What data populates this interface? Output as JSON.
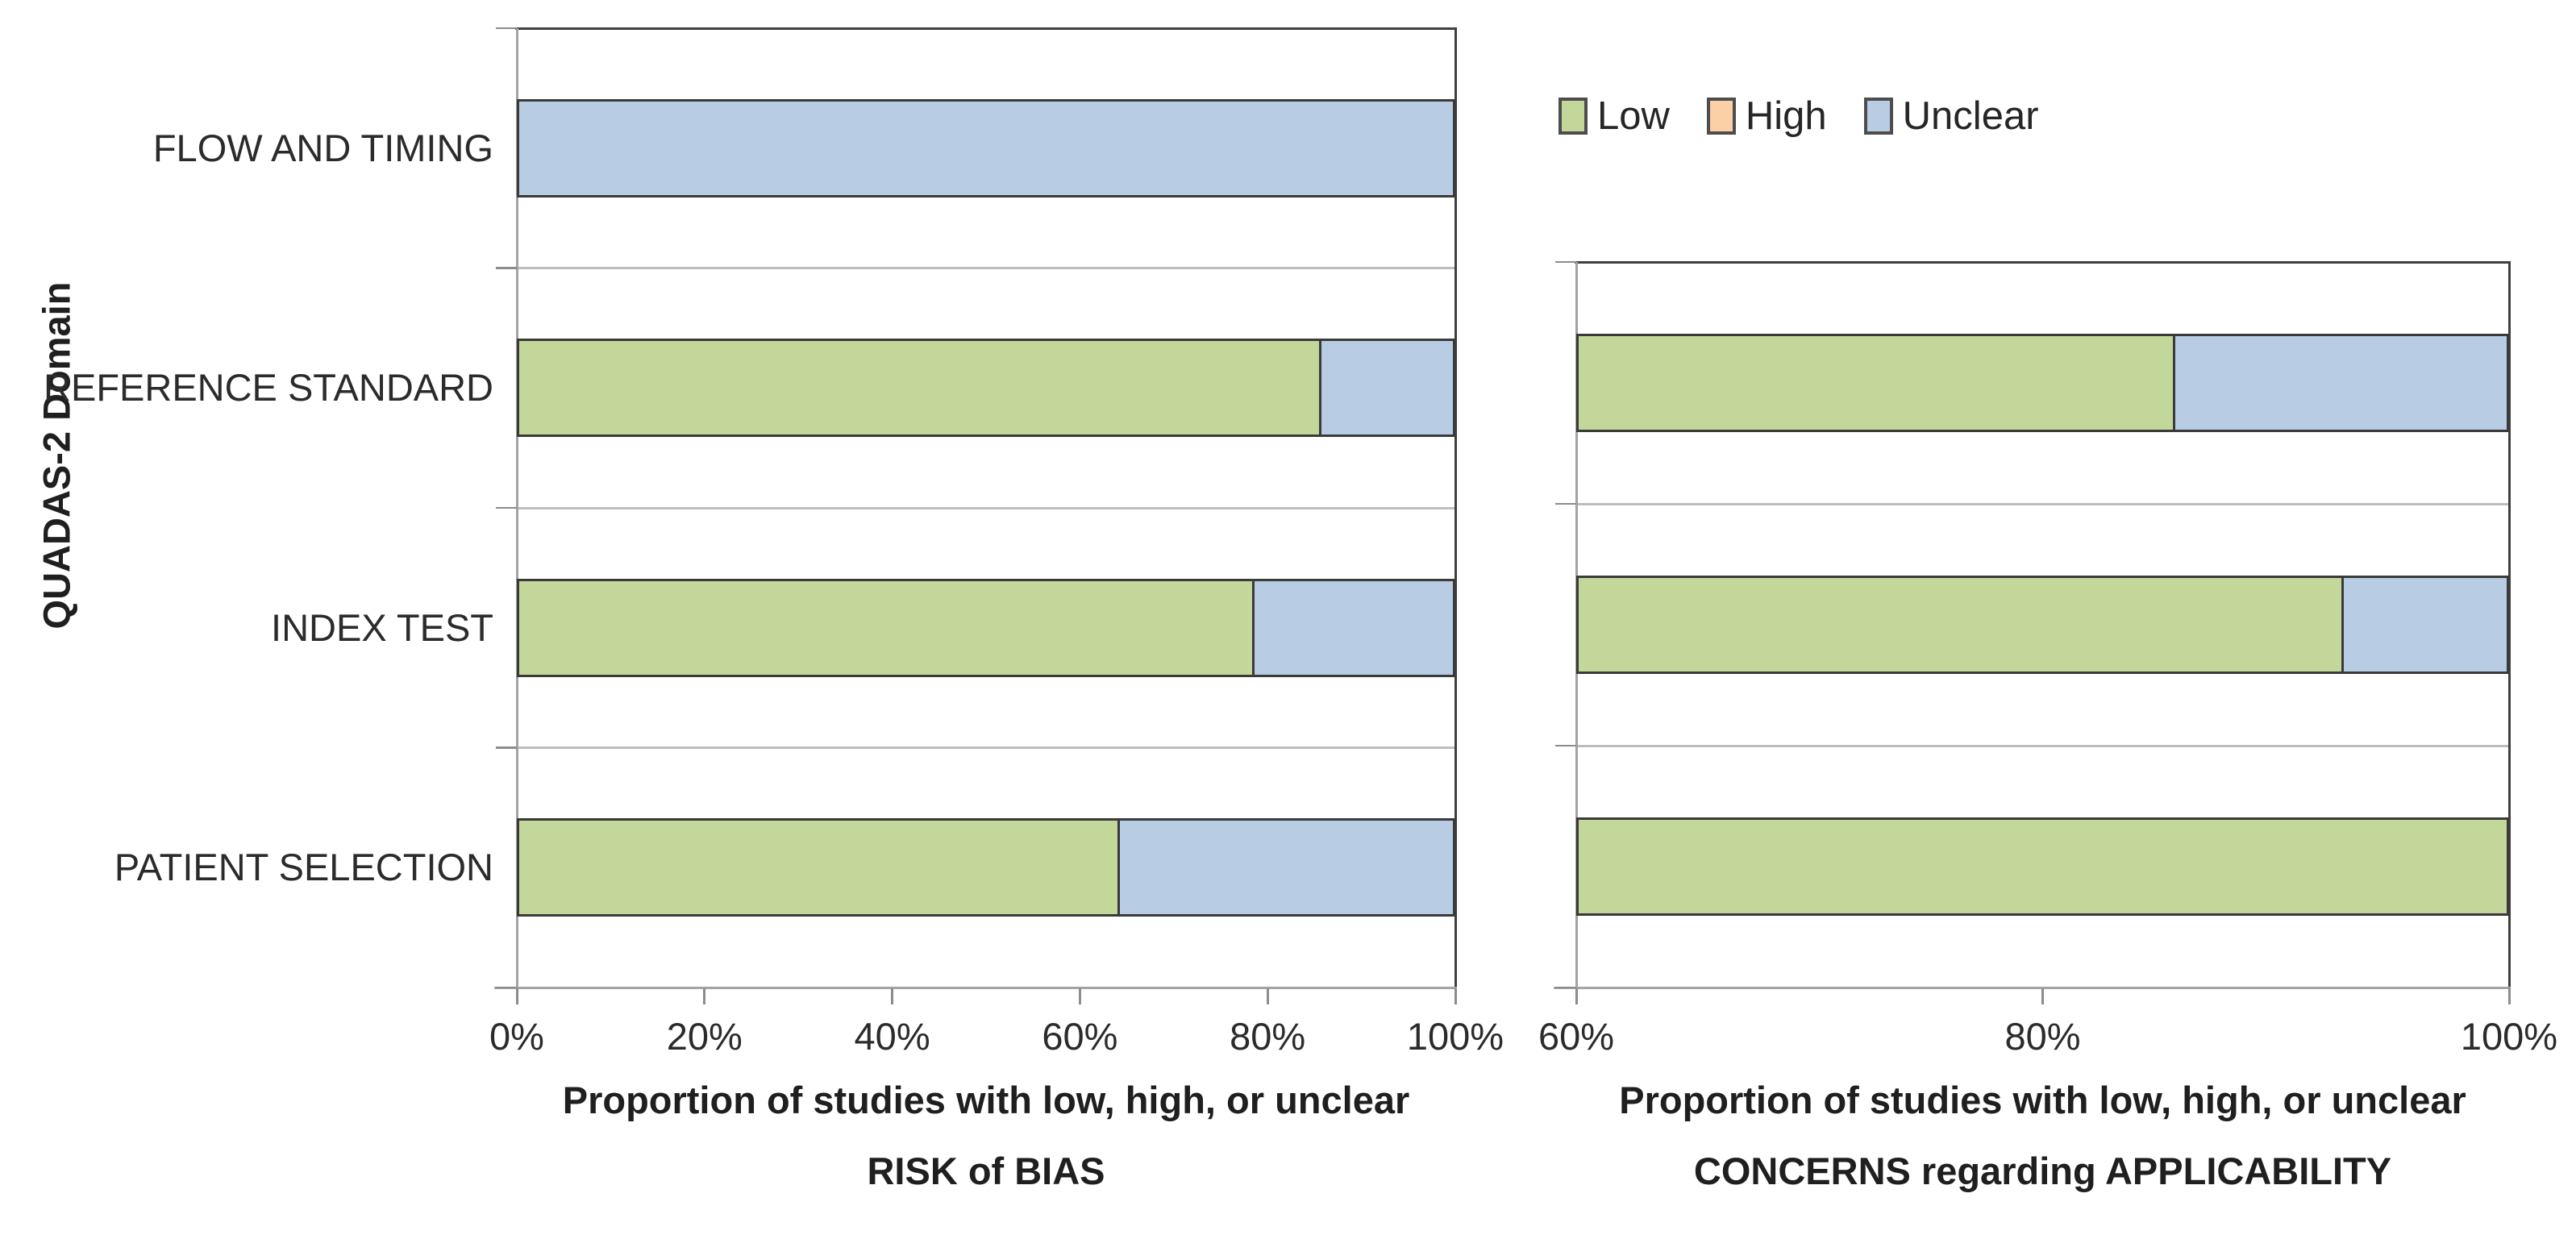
{
  "figure": {
    "background": "#ffffff",
    "y_axis_title": "QUADAS-2 Domain"
  },
  "legend": {
    "items": [
      {
        "label": "Low",
        "color": "#C4D79B"
      },
      {
        "label": "High",
        "color": "#FBD0A7"
      },
      {
        "label": "Unclear",
        "color": "#B8CCE4"
      }
    ]
  },
  "chart_data": [
    {
      "id": "risk-of-bias",
      "type": "bar",
      "orientation": "horizontal-stacked",
      "title": "",
      "ylabel": "QUADAS-2 Domain",
      "xlabel_lines": [
        "Proportion of studies with low, high, or unclear",
        "RISK of BIAS"
      ],
      "categories": [
        "FLOW AND TIMING",
        "REFERENCE STANDARD",
        "INDEX TEST",
        "PATIENT SELECTION"
      ],
      "series": [
        {
          "name": "Low",
          "color": "#C4D79B",
          "values": [
            0,
            85.7,
            78.6,
            64.3
          ]
        },
        {
          "name": "High",
          "color": "#FBD0A7",
          "values": [
            0,
            0,
            0,
            0
          ]
        },
        {
          "name": "Unclear",
          "color": "#B8CCE4",
          "values": [
            100,
            14.3,
            21.4,
            35.7
          ]
        }
      ],
      "xlim": [
        0,
        100
      ],
      "xticks": [
        {
          "value": 0,
          "label": "0%"
        },
        {
          "value": 20,
          "label": "20%"
        },
        {
          "value": 40,
          "label": "40%"
        },
        {
          "value": 60,
          "label": "60%"
        },
        {
          "value": 80,
          "label": "80%"
        },
        {
          "value": 100,
          "label": "100%"
        }
      ],
      "grid": "category-boundaries",
      "legend_position": "none"
    },
    {
      "id": "applicability",
      "type": "bar",
      "orientation": "horizontal-stacked",
      "title": "",
      "ylabel": "",
      "xlabel_lines": [
        "Proportion of studies with low, high, or unclear",
        "CONCERNS regarding APPLICABILITY"
      ],
      "categories": [
        "REFERENCE STANDARD",
        "INDEX TEST",
        "PATIENT SELECTION"
      ],
      "series": [
        {
          "name": "Low",
          "color": "#C4D79B",
          "values": [
            85.7,
            92.9,
            100
          ]
        },
        {
          "name": "High",
          "color": "#FBD0A7",
          "values": [
            0,
            0,
            0
          ]
        },
        {
          "name": "Unclear",
          "color": "#B8CCE4",
          "values": [
            14.3,
            7.1,
            0
          ]
        }
      ],
      "xlim": [
        60,
        100
      ],
      "xticks": [
        {
          "value": 60,
          "label": "60%"
        },
        {
          "value": 80,
          "label": "80%"
        },
        {
          "value": 100,
          "label": "100%"
        }
      ],
      "grid": "category-boundaries",
      "legend_position": "top"
    }
  ]
}
